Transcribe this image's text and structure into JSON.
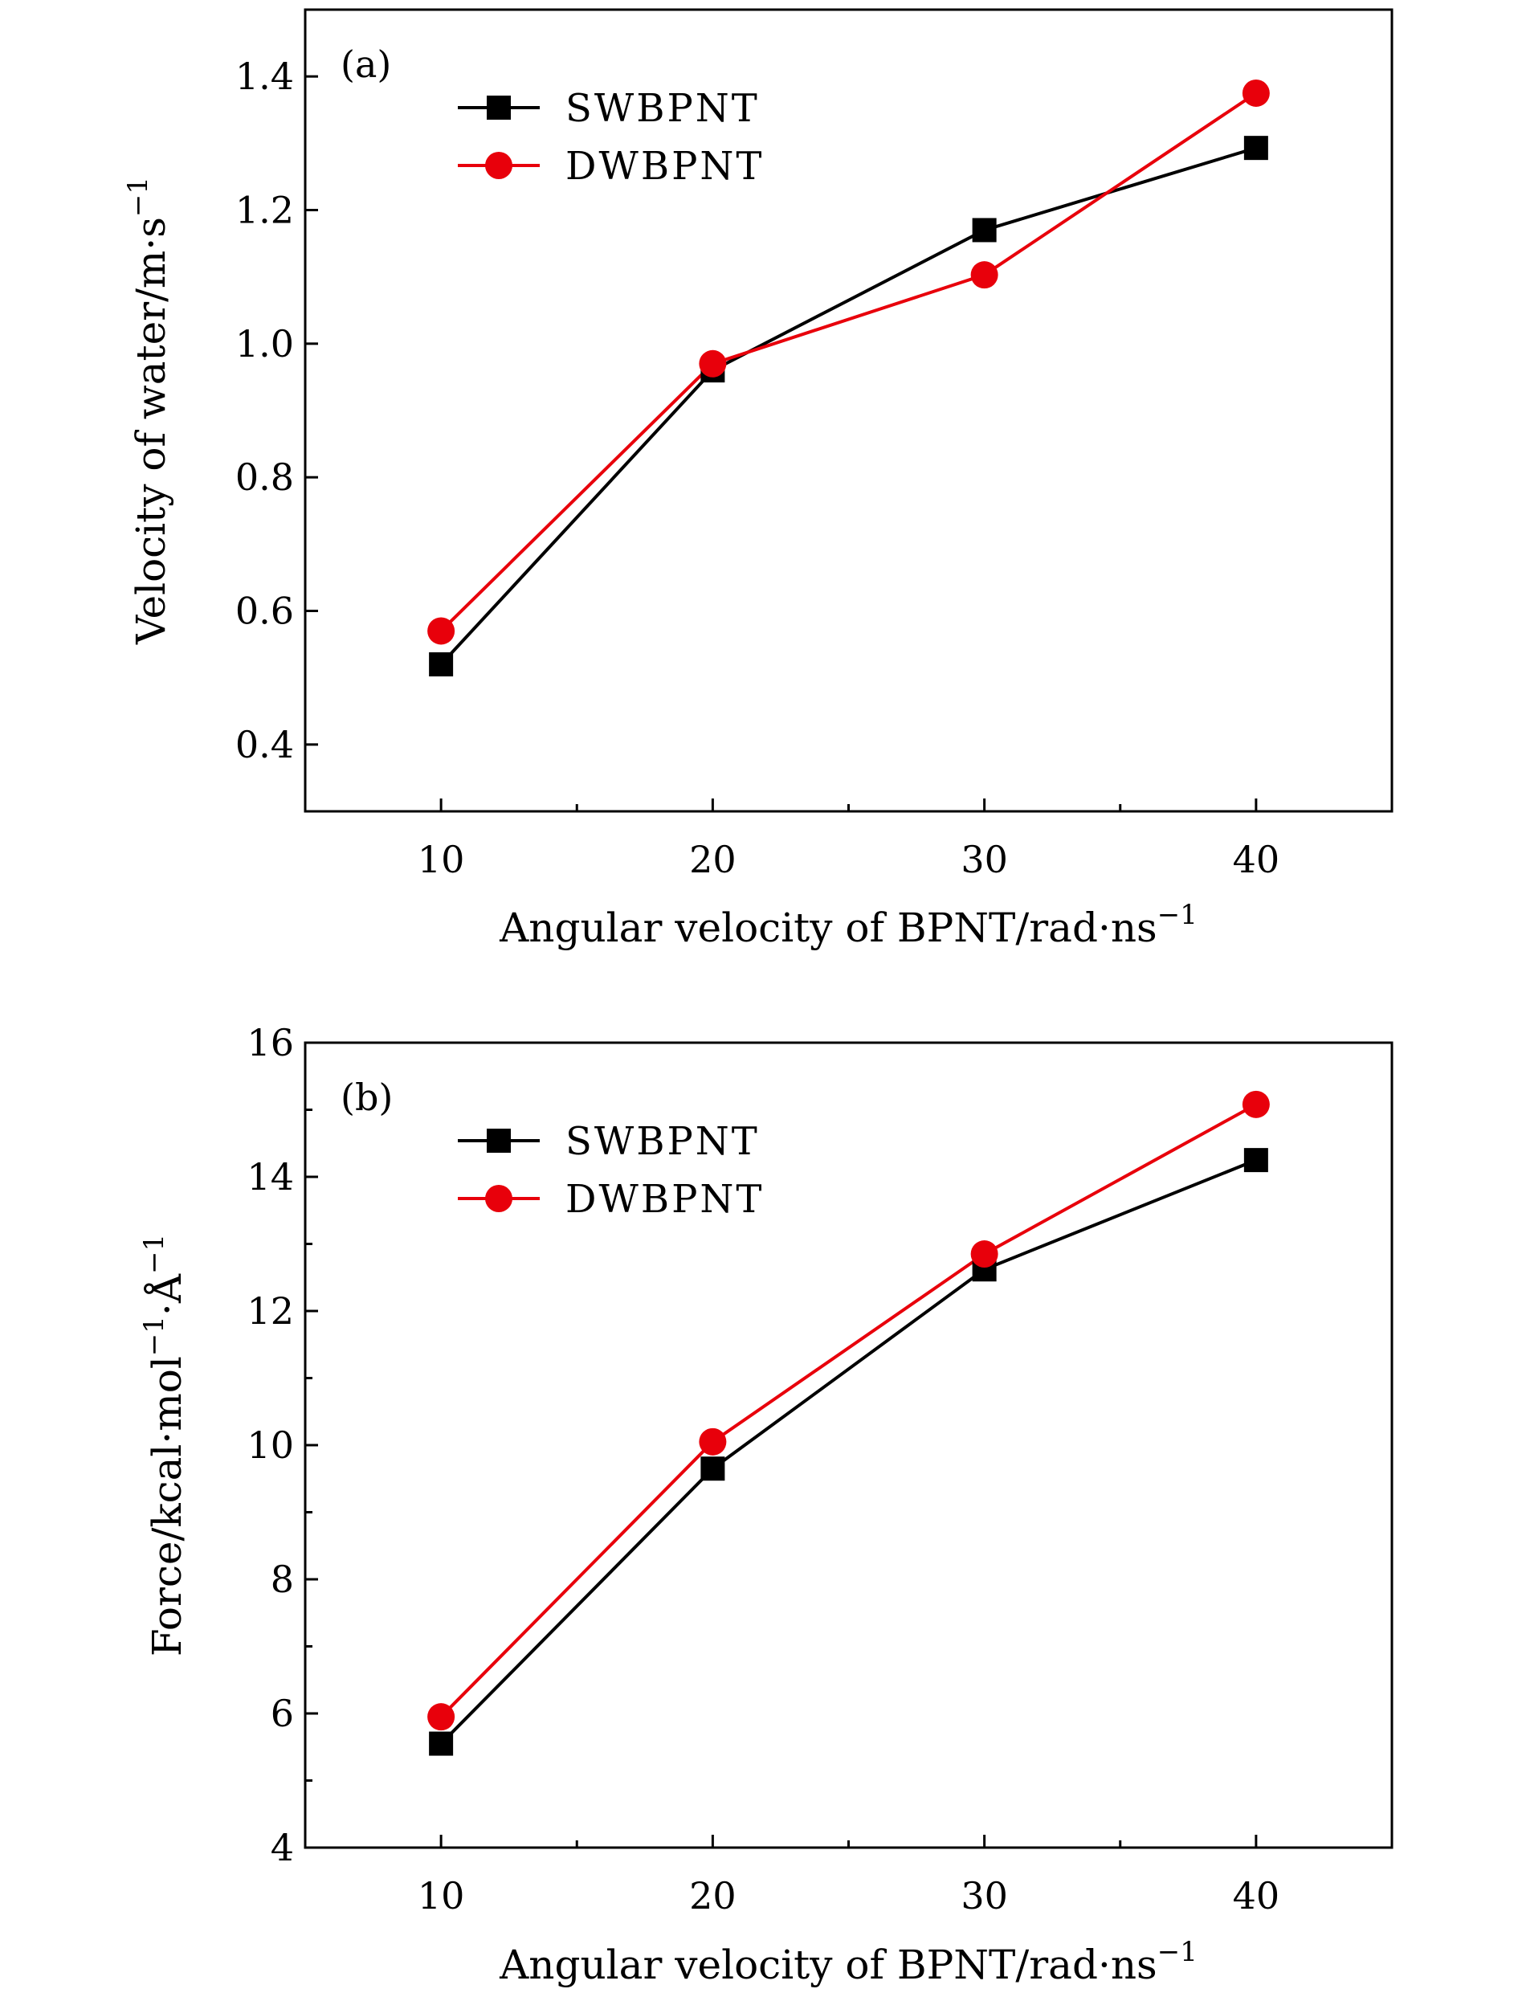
{
  "chart_data": [
    {
      "type": "line",
      "panel_label": "(a)",
      "x": [
        10,
        20,
        30,
        40
      ],
      "xlim": [
        5,
        45
      ],
      "xticks": [
        10,
        20,
        30,
        40
      ],
      "xtick_labels": [
        "10",
        "20",
        "30",
        "40"
      ],
      "xlabel": "Angular velocity of BPNT/rad·ns",
      "xlabel_sup": "−1",
      "ylim": [
        0.3,
        1.5
      ],
      "yticks": [
        0.4,
        0.6,
        0.8,
        1.0,
        1.2,
        1.4
      ],
      "ytick_labels": [
        "0.4",
        "0.6",
        "0.8",
        "1.0",
        "1.2",
        "1.4"
      ],
      "ylabel": "Velocity of water/m·s",
      "ylabel_sup": "−1",
      "legend_position": "top-left",
      "grid": false,
      "series": [
        {
          "name": "SWBPNT",
          "values": [
            0.52,
            0.96,
            1.17,
            1.293
          ],
          "color": "#000000",
          "marker": "square"
        },
        {
          "name": "DWBPNT",
          "values": [
            0.57,
            0.97,
            1.103,
            1.375
          ],
          "color": "#e8000b",
          "marker": "circle"
        }
      ]
    },
    {
      "type": "line",
      "panel_label": "(b)",
      "x": [
        10,
        20,
        30,
        40
      ],
      "xlim": [
        5,
        45
      ],
      "xticks": [
        10,
        20,
        30,
        40
      ],
      "xtick_labels": [
        "10",
        "20",
        "30",
        "40"
      ],
      "xlabel": "Angular velocity of BPNT/rad·ns",
      "xlabel_sup": "−1",
      "ylim": [
        4,
        16
      ],
      "yticks": [
        4,
        6,
        8,
        10,
        12,
        14,
        16
      ],
      "ytick_labels": [
        "4",
        "6",
        "8",
        "10",
        "12",
        "14",
        "16"
      ],
      "ylabel": "Force/kcal·mol",
      "ylabel_sup": "−1",
      "ylabel_mid": "·Å",
      "ylabel_sup2": "−1",
      "legend_position": "top-left",
      "grid": false,
      "series": [
        {
          "name": "SWBPNT",
          "values": [
            5.55,
            9.65,
            12.62,
            14.25
          ],
          "color": "#000000",
          "marker": "square"
        },
        {
          "name": "DWBPNT",
          "values": [
            5.95,
            10.05,
            12.85,
            15.08
          ],
          "color": "#e8000b",
          "marker": "circle"
        }
      ]
    }
  ]
}
